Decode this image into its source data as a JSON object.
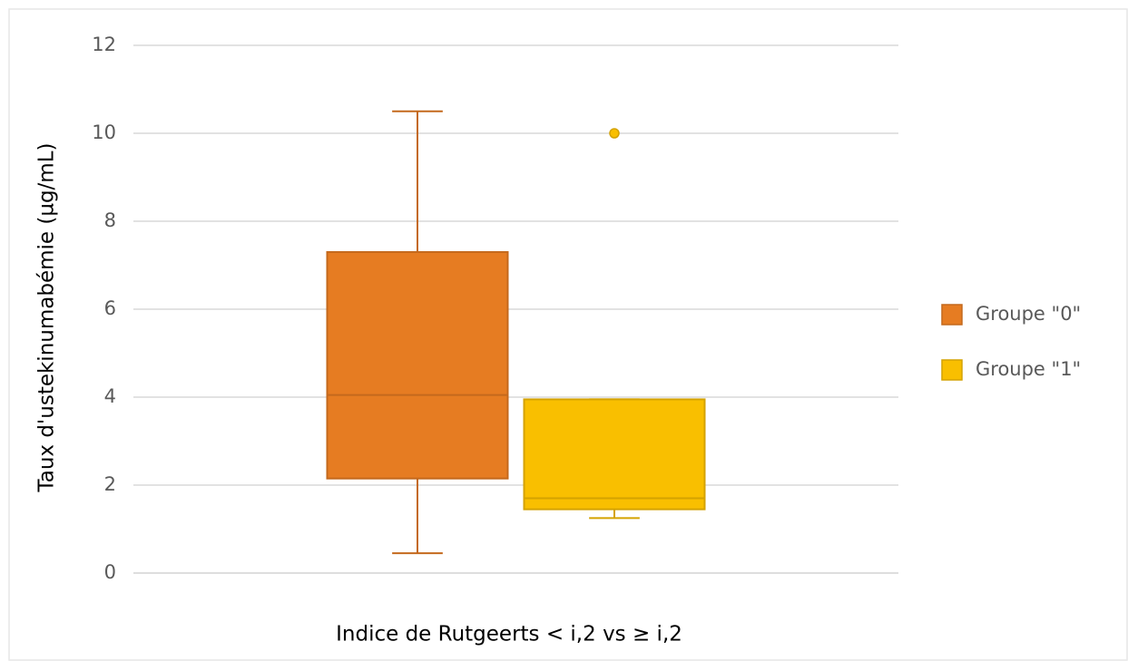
{
  "chart_data": {
    "type": "box",
    "x_label": "Indice de Rutgeerts < i,2 vs ≥ i,2",
    "y_label": "Taux d'ustekinumabémie (µg/mL)",
    "ylim": [
      0,
      12
    ],
    "yticks": [
      0,
      2,
      4,
      6,
      8,
      10,
      12
    ],
    "grid": true,
    "legend": "right",
    "series": [
      {
        "name": "Groupe \"0\"",
        "color": "#E67C22",
        "min": 0.45,
        "q1": 2.15,
        "median": 4.05,
        "q3": 7.3,
        "max": 10.5,
        "outliers": []
      },
      {
        "name": "Groupe \"1\"",
        "color": "#F9BF00",
        "min": 1.25,
        "q1": 1.45,
        "median": 1.7,
        "q3": 3.95,
        "max": 3.95,
        "outliers": [
          10
        ]
      }
    ]
  }
}
